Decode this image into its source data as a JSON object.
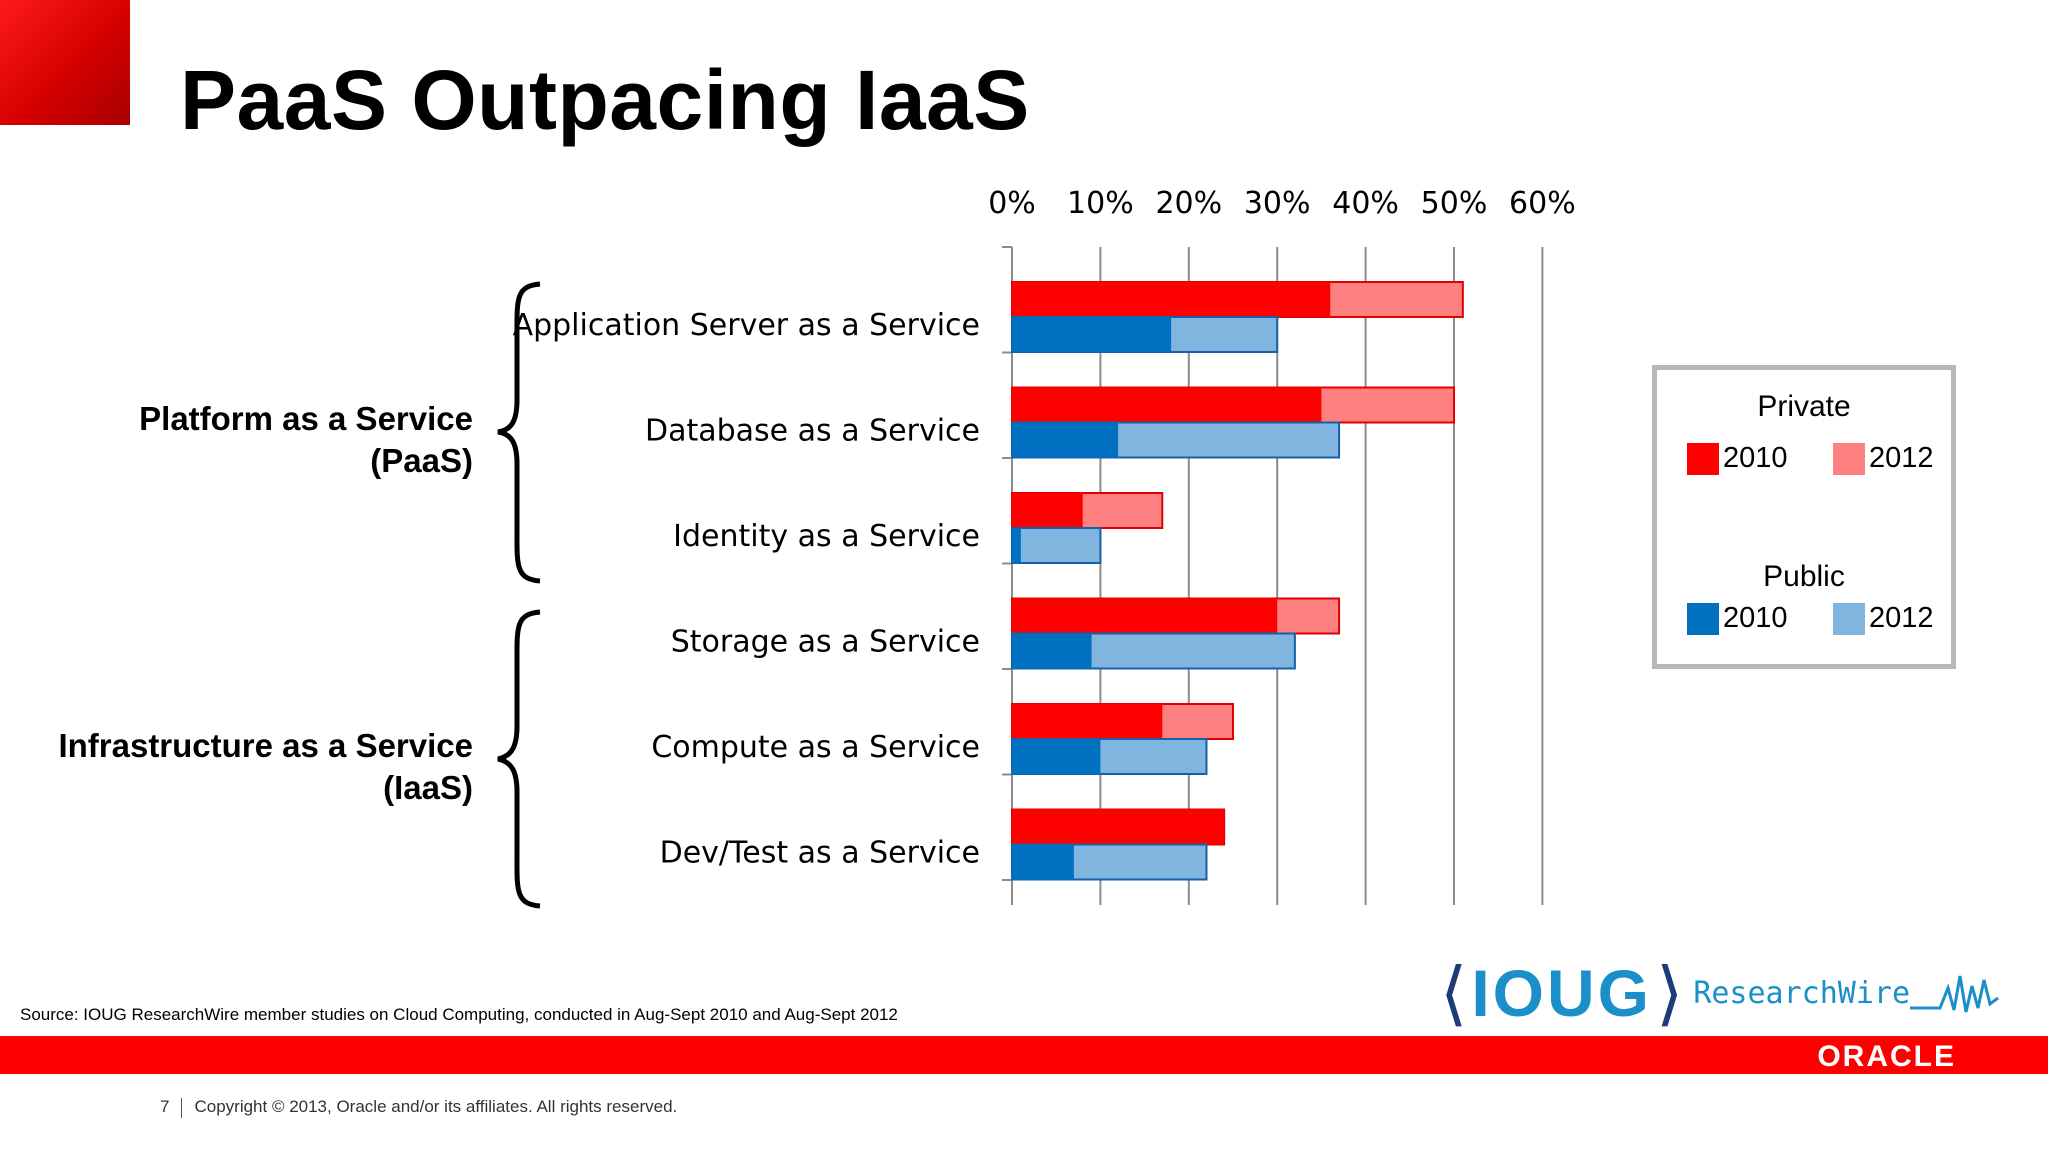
{
  "slide": {
    "title": "PaaS Outpacing IaaS",
    "source": "Source: IOUG ResearchWire member studies on Cloud Computing, conducted in Aug-Sept 2010 and Aug-Sept 2012",
    "page_number": "7",
    "copyright": "Copyright © 2013, Oracle and/or its affiliates. All rights reserved.",
    "ioug_logo_text": "IOUG",
    "researchwire_text": "ResearchWire",
    "oracle_logo_text": "ORACLE"
  },
  "groups": [
    {
      "line1": "Platform as a Service",
      "line2": "(PaaS)"
    },
    {
      "line1": "Infrastructure as a Service",
      "line2": "(IaaS)"
    }
  ],
  "legend": {
    "private_title": "Private",
    "public_title": "Public",
    "year_2010": "2010",
    "year_2012": "2012"
  },
  "colors": {
    "private_2010": "#ff0000",
    "private_2012": "#ff8080",
    "public_2010": "#0070c0",
    "public_2012": "#80b5e0",
    "brand_red": "#ff0000"
  },
  "chart_data": {
    "type": "bar",
    "orientation": "horizontal",
    "categories": [
      "Application Server as a Service",
      "Database as a Service",
      "Identity as a Service",
      "Storage as a Service",
      "Compute as a Service",
      "Dev/Test as a Service"
    ],
    "series": [
      {
        "name": "Private 2010",
        "values": [
          36,
          35,
          8,
          30,
          17,
          24
        ]
      },
      {
        "name": "Private 2012",
        "values": [
          51,
          50,
          17,
          37,
          25,
          24
        ]
      },
      {
        "name": "Public 2010",
        "values": [
          18,
          12,
          1,
          9,
          10,
          7
        ]
      },
      {
        "name": "Public 2012",
        "values": [
          30,
          37,
          10,
          32,
          22,
          22
        ]
      }
    ],
    "xlim": [
      0,
      60
    ],
    "x_ticks": [
      "0%",
      "10%",
      "20%",
      "30%",
      "40%",
      "50%",
      "60%"
    ],
    "tick_values": [
      0,
      10,
      20,
      30,
      40,
      50,
      60
    ],
    "grid": true,
    "legend_position": "right"
  }
}
